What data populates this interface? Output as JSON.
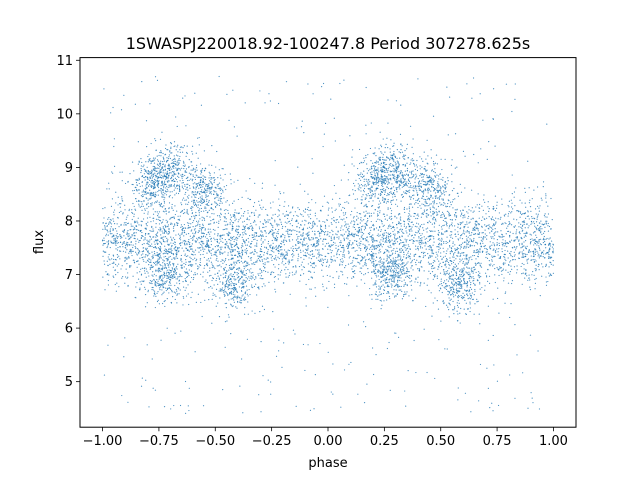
{
  "chart_data": {
    "type": "scatter",
    "title": "1SWASPJ220018.92-100247.8 Period 307278.625s",
    "xlabel": "phase",
    "ylabel": "flux",
    "xlim": [
      -1.1,
      1.1
    ],
    "ylim": [
      4.15,
      11.05
    ],
    "xticks": [
      -1.0,
      -0.75,
      -0.5,
      -0.25,
      0.0,
      0.25,
      0.5,
      0.75,
      1.0
    ],
    "xtick_labels": [
      "−1.00",
      "−0.75",
      "−0.50",
      "−0.25",
      "0.00",
      "0.25",
      "0.50",
      "0.75",
      "1.00"
    ],
    "yticks": [
      5,
      6,
      7,
      8,
      9,
      10,
      11
    ],
    "ytick_labels": [
      "5",
      "6",
      "7",
      "8",
      "9",
      "10",
      "11"
    ],
    "grid": false,
    "legend": "none",
    "point_color": "#1f77b4",
    "x_range_of_points": [
      -1.0,
      1.0
    ],
    "main_band": {
      "flux_center": 7.6,
      "flux_spread": [
        6.5,
        8.7
      ]
    },
    "features": [
      {
        "phase_center": -0.78,
        "flux_center": 8.7,
        "note": "upper clump"
      },
      {
        "phase_center": -0.7,
        "flux_center": 8.95
      },
      {
        "phase_center": -0.55,
        "flux_center": 8.6
      },
      {
        "phase_center": -0.72,
        "flux_center": 7.0,
        "note": "lower clump"
      },
      {
        "phase_center": -0.42,
        "flux_center": 6.8
      },
      {
        "phase_center": 0.22,
        "flux_center": 8.7
      },
      {
        "phase_center": 0.3,
        "flux_center": 8.95
      },
      {
        "phase_center": 0.45,
        "flux_center": 8.6
      },
      {
        "phase_center": 0.28,
        "flux_center": 7.0
      },
      {
        "phase_center": 0.58,
        "flux_center": 6.8
      }
    ],
    "outlier_range": [
      4.4,
      10.7
    ]
  }
}
